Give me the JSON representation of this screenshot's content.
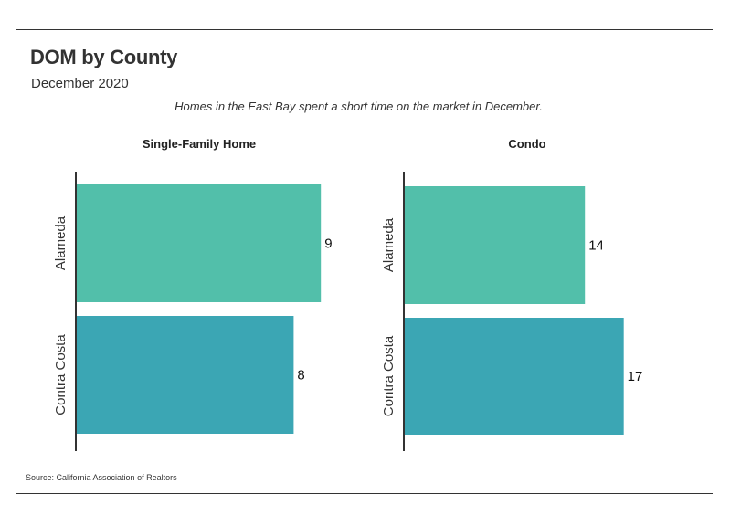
{
  "header": {
    "title": "DOM by County",
    "subtitle": "December 2020",
    "note": "Homes in the East Bay spent a short time on the market in December."
  },
  "footer": {
    "source": "Source:  California Association of Realtors"
  },
  "colors": {
    "alameda": "#52bfaa",
    "contra_costa": "#3ba6b4",
    "axis": "#333333"
  },
  "chart_data": [
    {
      "type": "bar",
      "orientation": "horizontal",
      "title": "Single-Family Home",
      "categories": [
        "Alameda",
        "Contra Costa"
      ],
      "values": [
        9,
        8
      ],
      "xlim": [
        0,
        10
      ],
      "grid": false
    },
    {
      "type": "bar",
      "orientation": "horizontal",
      "title": "Condo",
      "categories": [
        "Alameda",
        "Contra Costa"
      ],
      "values": [
        14,
        17
      ],
      "xlim": [
        0,
        19
      ],
      "grid": false
    }
  ]
}
